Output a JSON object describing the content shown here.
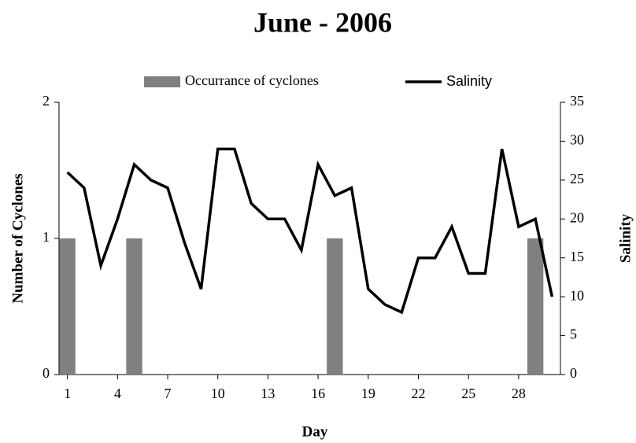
{
  "chart_data": {
    "type": "bar",
    "title": "June - 2006",
    "categories": [
      1,
      null,
      null,
      4,
      null,
      null,
      7,
      null,
      null,
      10,
      null,
      null,
      13,
      null,
      null,
      16,
      null,
      null,
      19,
      null,
      null,
      22,
      null,
      null,
      25,
      null,
      null,
      28,
      null,
      null
    ],
    "series": [
      {
        "name": "Occurrance of cyclones",
        "color": "#808080",
        "type": "bar",
        "values": [
          1,
          0,
          0,
          0,
          1,
          0,
          0,
          0,
          0,
          0,
          0,
          0,
          0,
          0,
          0,
          0,
          1,
          0,
          0,
          0,
          0,
          0,
          0,
          0,
          0,
          0,
          0,
          0,
          1,
          0
        ]
      },
      {
        "name": "Salinity",
        "color": "#000000",
        "type": "line",
        "axis": "y2",
        "values": [
          26,
          24,
          14,
          20,
          27,
          25,
          24,
          17,
          11,
          29,
          29,
          22,
          20,
          20,
          16,
          27,
          23,
          24,
          11,
          9,
          8,
          15,
          15,
          19,
          13,
          13,
          29,
          19,
          20,
          10
        ]
      }
    ],
    "xlabel": "Day",
    "ylabel": "Number of Cyclones",
    "y2label": "Salinity",
    "ylim": [
      0,
      2
    ],
    "yticks": [
      0,
      1,
      2
    ],
    "y2lim": [
      0,
      35
    ],
    "y2ticks": [
      0,
      5,
      10,
      15,
      20,
      25,
      30,
      35
    ],
    "legend": "top"
  }
}
